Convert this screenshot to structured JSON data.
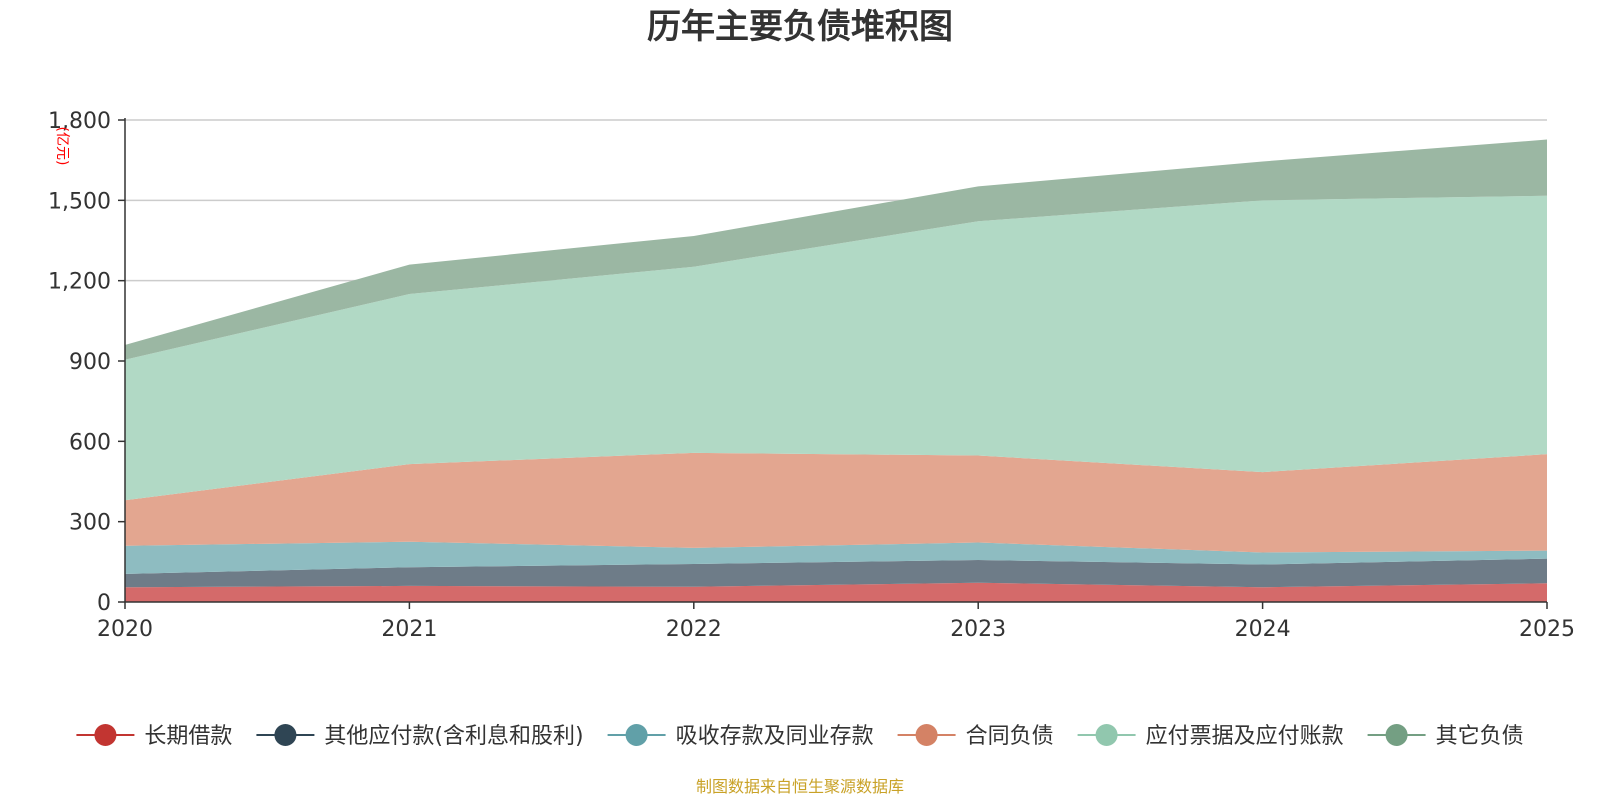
{
  "colors": {
    "axis": "#333333",
    "grid": "#cccccc",
    "unit": "#ff0000",
    "source": "#c9a227"
  },
  "footer": {
    "source_text": "制图数据来自恒生聚源数据库"
  },
  "chart_data": {
    "type": "area",
    "stacked": true,
    "title": "历年主要负债堆积图",
    "ylabel": "(亿元)",
    "xlabel": "",
    "x": [
      "2020",
      "2021",
      "2022",
      "2023",
      "2024",
      "2025"
    ],
    "ylim": [
      0,
      1800
    ],
    "yticks": [
      0,
      300,
      600,
      900,
      1200,
      1500,
      1800
    ],
    "ytick_labels": [
      "0",
      "300",
      "600",
      "900",
      "1,200",
      "1,500",
      "1,800"
    ],
    "grid": true,
    "legend_position": "bottom",
    "series": [
      {
        "name": "长期借款",
        "values": [
          55,
          60,
          57,
          72,
          55,
          70
        ],
        "fill": "#d46a6a",
        "marker": "#c23531",
        "opacity": 1
      },
      {
        "name": "其他应付款(含利息和股利)",
        "values": [
          50,
          70,
          85,
          85,
          85,
          92
        ],
        "fill": "#6e7c88",
        "marker": "#2f4554",
        "opacity": 1
      },
      {
        "name": "吸收存款及同业存款",
        "values": [
          105,
          95,
          60,
          65,
          45,
          30
        ],
        "fill": "#8ebcc1",
        "marker": "#61a0a8",
        "opacity": 1
      },
      {
        "name": "合同负债",
        "values": [
          170,
          290,
          355,
          325,
          300,
          360
        ],
        "fill": "#e3a690",
        "marker": "#d48265",
        "opacity": 1
      },
      {
        "name": "应付票据及应付账款",
        "values": [
          525,
          635,
          695,
          875,
          1015,
          965
        ],
        "fill": "#b1d9c5",
        "marker": "#91c7ae",
        "opacity": 1
      },
      {
        "name": "其它负债",
        "values": [
          55,
          110,
          115,
          130,
          145,
          210
        ],
        "fill": "#9bb7a3",
        "marker": "#749f83",
        "opacity": 1
      }
    ]
  }
}
